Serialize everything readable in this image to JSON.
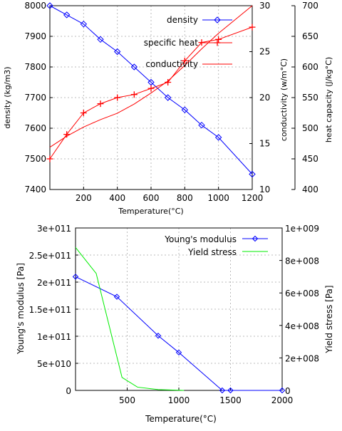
{
  "chart_data": [
    {
      "type": "line",
      "xlabel": "Temperature(°C)",
      "xlim": [
        0,
        1200
      ],
      "xticks": [
        "200",
        "400",
        "600",
        "800",
        "1000",
        "1200"
      ],
      "axes": {
        "left": {
          "label": "density  (kg/m3)",
          "lim": [
            7400,
            8000
          ],
          "ticks": [
            "7400",
            "7500",
            "7600",
            "7700",
            "7800",
            "7900",
            "8000"
          ]
        },
        "right1": {
          "label": "conductivity  (w/m°C)",
          "lim": [
            10,
            30
          ],
          "ticks": [
            "10",
            "15",
            "20",
            "25",
            "30"
          ]
        },
        "right2": {
          "label": "heat capacity (J/kg°C)",
          "lim": [
            400,
            700
          ],
          "ticks": [
            "400",
            "450",
            "500",
            "550",
            "600",
            "650",
            "700"
          ]
        }
      },
      "grid": true,
      "legend_position": "top-right",
      "series": [
        {
          "name": "density",
          "axis": "left",
          "color": "#0000ff",
          "marker": "diamond",
          "x": [
            0,
            100,
            200,
            300,
            400,
            500,
            600,
            700,
            800,
            900,
            1000,
            1200
          ],
          "y": [
            8000,
            7970,
            7940,
            7890,
            7850,
            7800,
            7750,
            7700,
            7660,
            7610,
            7570,
            7450
          ]
        },
        {
          "name": "specific heat",
          "axis": "right2",
          "color": "#ff0000",
          "marker": "plus",
          "x": [
            0,
            100,
            200,
            300,
            400,
            500,
            600,
            700,
            800,
            900,
            1000,
            1200
          ],
          "y": [
            450,
            490,
            525,
            540,
            550,
            555,
            565,
            575,
            610,
            640,
            645,
            665
          ]
        },
        {
          "name": "conductivity",
          "axis": "right1",
          "color": "#ff0000",
          "marker": "none",
          "x": [
            0,
            100,
            200,
            300,
            400,
            500,
            600,
            700,
            800,
            900,
            1000,
            1100,
            1200
          ],
          "y": [
            14.6,
            15.8,
            16.8,
            17.6,
            18.3,
            19.3,
            20.5,
            21.8,
            23.5,
            25.3,
            27.0,
            28.5,
            30.0
          ]
        }
      ]
    },
    {
      "type": "line",
      "xlabel": "Temperature(°C)",
      "xlim": [
        0,
        2000
      ],
      "xticks": [
        "500",
        "1000",
        "1500",
        "2000"
      ],
      "axes": {
        "left": {
          "label": "Young's modulus [Pa]",
          "lim": [
            0,
            300000000000.0
          ],
          "ticks": [
            "0",
            "5e+010",
            "1e+011",
            "1.5e+011",
            "2e+011",
            "2.5e+011",
            "3e+011"
          ]
        },
        "right": {
          "label": "Yield stress [Pa]",
          "lim": [
            0,
            1000000000.0
          ],
          "ticks": [
            "0",
            "2e+008",
            "4e+008",
            "6e+008",
            "8e+008",
            "1e+009"
          ]
        }
      },
      "grid": true,
      "legend_position": "top-right",
      "series": [
        {
          "name": "Young's modulus",
          "axis": "left",
          "color": "#0000ff",
          "marker": "diamond",
          "x": [
            0,
            400,
            800,
            1000,
            1420,
            1500,
            2000
          ],
          "y": [
            210000000000.0,
            173000000000.0,
            101000000000.0,
            70000000000.0,
            0,
            0,
            0
          ]
        },
        {
          "name": "Yield stress",
          "axis": "right",
          "color": "#00ee00",
          "marker": "none",
          "x": [
            0,
            200,
            450,
            600,
            800,
            1050
          ],
          "y": [
            880000000.0,
            720000000.0,
            80000000.0,
            20000000.0,
            5000000.0,
            0
          ]
        }
      ]
    }
  ]
}
